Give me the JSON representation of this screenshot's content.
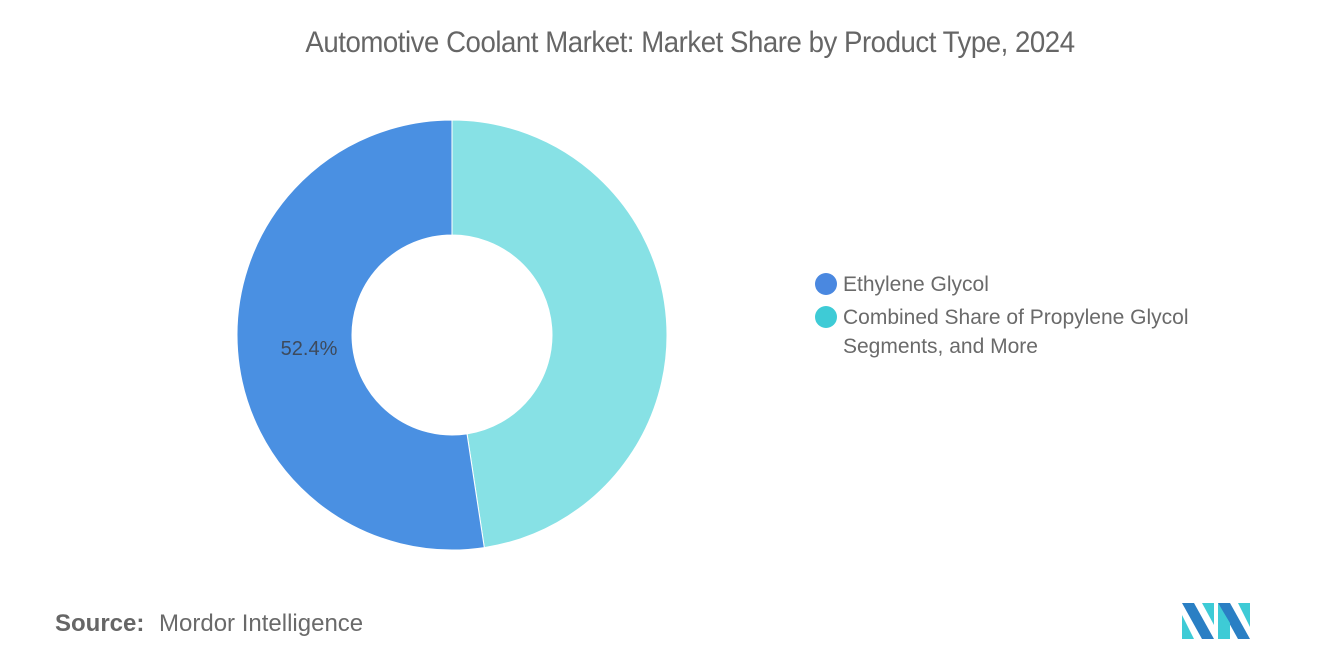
{
  "title": "Automotive Coolant Market: Market Share by Product Type, 2024",
  "legend": {
    "items": [
      {
        "label": "Ethylene Glycol",
        "color": "#4a90e2"
      },
      {
        "label": "Combined Share of Propylene Glycol Segments, and More",
        "color": "#3ecbd6"
      }
    ]
  },
  "slice_labels": {
    "ethylene": "52.4%"
  },
  "source": {
    "key": "Source:",
    "value": "Mordor Intelligence"
  },
  "chart_data": {
    "type": "pie",
    "subtype": "donut",
    "title": "Automotive Coolant Market: Market Share by Product Type, 2024",
    "categories": [
      "Ethylene Glycol",
      "Combined Share of Propylene Glycol Segments, and More"
    ],
    "values": [
      52.4,
      47.6
    ],
    "colors": [
      "#4a90e2",
      "#87e1e5"
    ],
    "data_labels": [
      "52.4%",
      ""
    ],
    "legend_position": "right",
    "source": "Mordor Intelligence"
  }
}
